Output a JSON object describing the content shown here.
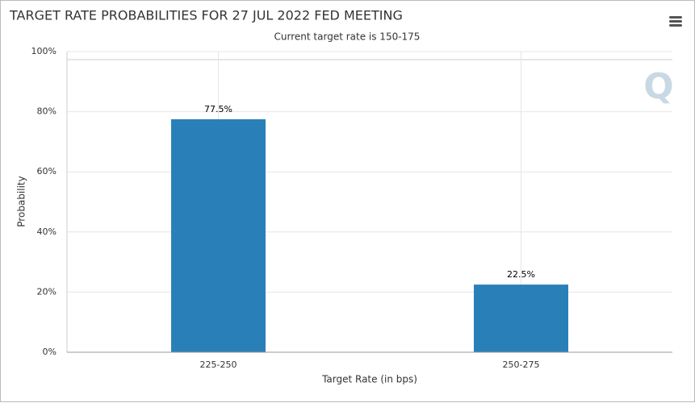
{
  "chart_data": {
    "type": "bar",
    "title": "TARGET RATE PROBABILITIES FOR 27 JUL 2022 FED MEETING",
    "subtitle": "Current target rate is 150-175",
    "x_label": "Target Rate (in bps)",
    "y_label": "Probability",
    "categories": [
      "225-250",
      "250-275"
    ],
    "values": [
      77.5,
      22.5
    ],
    "value_labels": [
      "77.5%",
      "22.5%"
    ],
    "color": "#2980b9",
    "ylim": [
      0,
      100
    ],
    "yticks": [
      {
        "value": 0,
        "label": "0%"
      },
      {
        "value": 20,
        "label": "20%"
      },
      {
        "value": 40,
        "label": "40%"
      },
      {
        "value": 60,
        "label": "60%"
      },
      {
        "value": 80,
        "label": "80%"
      },
      {
        "value": 100,
        "label": "100%"
      }
    ],
    "grid": true
  }
}
